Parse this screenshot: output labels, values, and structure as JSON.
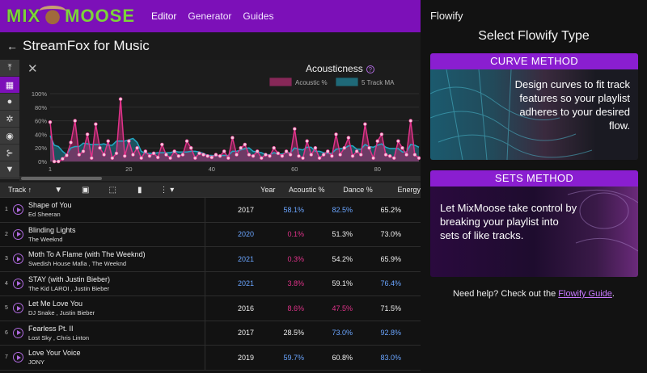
{
  "nav": {
    "logo_mix": "MIX",
    "logo_moose": "MOOSE",
    "links": [
      "Editor",
      "Generator",
      "Guides"
    ]
  },
  "page": {
    "title": "StreamFox for Music"
  },
  "chart_data": {
    "type": "line",
    "title": "Acousticness",
    "legend": [
      {
        "name": "Acoustic %",
        "color": "#e0338a"
      },
      {
        "name": "5 Track MA",
        "color": "#22a9c4"
      }
    ],
    "legend_position": "top-right",
    "yticks": [
      "100%",
      "80%",
      "60%",
      "40%",
      "20%",
      "0%"
    ],
    "xticks": [
      "1",
      "20",
      "40",
      "60",
      "80"
    ],
    "ylim": [
      0,
      100
    ],
    "x_start": 1,
    "series": [
      {
        "name": "Acoustic %",
        "values": [
          58,
          0,
          0,
          4,
          9,
          28,
          60,
          10,
          15,
          40,
          5,
          55,
          20,
          10,
          30,
          5,
          12,
          92,
          8,
          30,
          10,
          20,
          5,
          15,
          8,
          12,
          6,
          25,
          10,
          5,
          15,
          8,
          10,
          30,
          20,
          5,
          12,
          10,
          8,
          6,
          10,
          8,
          15,
          5,
          35,
          10,
          20,
          25,
          10,
          8,
          15,
          5,
          10,
          8,
          20,
          12,
          8,
          15,
          10,
          48,
          8,
          5,
          30,
          10,
          20,
          5,
          10,
          15,
          8,
          40,
          10,
          20,
          35,
          8,
          15,
          10,
          55,
          20,
          5,
          30,
          40,
          10,
          8,
          5,
          30,
          20,
          10,
          60,
          10,
          5
        ]
      },
      {
        "name": "5 Track MA",
        "values": [
          38,
          24,
          22,
          15,
          10,
          20,
          22,
          22,
          27,
          26,
          25,
          25,
          25,
          26,
          24,
          24,
          30,
          30,
          30,
          32,
          34,
          28,
          15,
          12,
          12,
          12,
          13,
          13,
          13,
          13,
          15,
          14,
          14,
          14,
          15,
          15,
          14,
          12,
          9,
          9,
          8,
          9,
          9,
          9,
          15,
          15,
          17,
          19,
          20,
          15,
          14,
          13,
          10,
          10,
          13,
          11,
          11,
          13,
          13,
          20,
          18,
          17,
          21,
          21,
          15,
          15,
          13,
          12,
          12,
          18,
          19,
          19,
          23,
          23,
          18,
          18,
          25,
          22,
          21,
          24,
          26,
          21,
          19,
          19,
          19,
          14,
          14,
          25,
          24,
          21
        ]
      }
    ]
  },
  "table": {
    "columns": {
      "track": "Track",
      "year": "Year",
      "acoustic": "Acoustic %",
      "dance": "Dance %",
      "energy": "Energy"
    },
    "rows": [
      {
        "idx": "1",
        "name": "Shape of You",
        "artist": "Ed Sheeran",
        "year": "2017",
        "acoustic": "58.1%",
        "dance": "82.5%",
        "energy": "65.2%"
      },
      {
        "idx": "2",
        "name": "Blinding Lights",
        "artist": "The Weeknd",
        "year": "2020",
        "acoustic": "0.1%",
        "dance": "51.3%",
        "energy": "73.0%"
      },
      {
        "idx": "3",
        "name": "Moth To A Flame (with The Weeknd)",
        "artist": "Swedish House Mafia , The Weeknd",
        "year": "2021",
        "acoustic": "0.3%",
        "dance": "54.2%",
        "energy": "65.9%"
      },
      {
        "idx": "4",
        "name": "STAY (with Justin Bieber)",
        "artist": "The Kid LAROI , Justin Bieber",
        "year": "2021",
        "acoustic": "3.8%",
        "dance": "59.1%",
        "energy": "76.4%"
      },
      {
        "idx": "5",
        "name": "Let Me Love You",
        "artist": "DJ Snake , Justin Bieber",
        "year": "2016",
        "acoustic": "8.6%",
        "dance": "47.5%",
        "energy": "71.5%"
      },
      {
        "idx": "6",
        "name": "Fearless Pt. II",
        "artist": "Lost Sky , Chris Linton",
        "year": "2017",
        "acoustic": "28.5%",
        "dance": "73.0%",
        "energy": "92.8%"
      },
      {
        "idx": "7",
        "name": "Love Your Voice",
        "artist": "JONY",
        "year": "2019",
        "acoustic": "59.7%",
        "dance": "60.8%",
        "energy": "83.0%"
      }
    ]
  },
  "colors": {
    "blue": "#6aa5ff",
    "pink": "#e0338a",
    "white": "#eeeeee"
  },
  "panel": {
    "app_name": "Flowify",
    "title": "Select Flowify Type",
    "curve": {
      "heading": "CURVE METHOD",
      "text": "Design curves to fit track features so your playlist adheres to your desired flow."
    },
    "sets": {
      "heading": "SETS METHOD",
      "text": "Let MixMoose take control by breaking your playlist into sets of like tracks."
    },
    "help_prefix": "Need help? Check out the ",
    "help_link": "Flowify Guide",
    "help_suffix": "."
  }
}
